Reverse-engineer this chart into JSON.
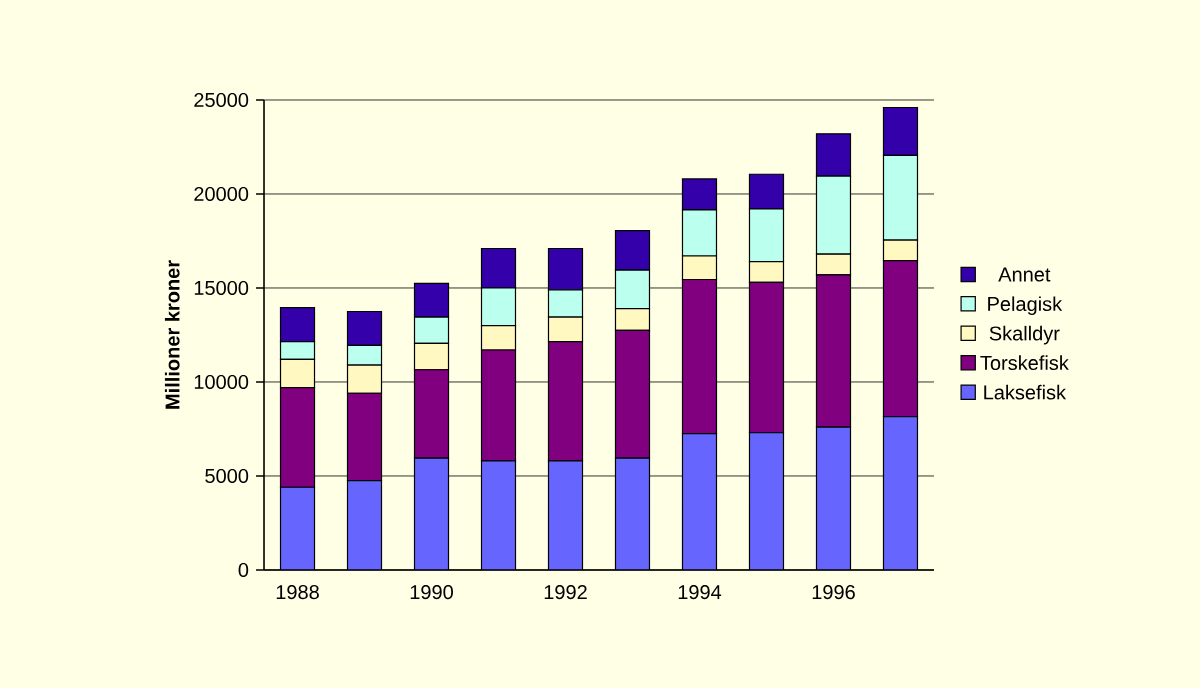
{
  "chart_data": {
    "type": "bar",
    "stacked": true,
    "ylabel": "Millioner kroner",
    "categories": [
      "1988",
      null,
      "1990",
      null,
      "1992",
      null,
      "1994",
      null,
      "1996",
      null
    ],
    "series": [
      {
        "name": "Laksefisk",
        "color": "#6666ff",
        "values": [
          4400,
          4750,
          5950,
          5800,
          5800,
          5950,
          7250,
          7300,
          7600,
          8150
        ]
      },
      {
        "name": "Torskefisk",
        "color": "#800080",
        "values": [
          5300,
          4650,
          4700,
          5900,
          6350,
          6800,
          8200,
          8000,
          8100,
          8300
        ]
      },
      {
        "name": "Skalldyr",
        "color": "#fff8c0",
        "values": [
          1500,
          1500,
          1400,
          1300,
          1300,
          1150,
          1250,
          1100,
          1100,
          1100
        ]
      },
      {
        "name": "Pelagisk",
        "color": "#bbffee",
        "values": [
          950,
          1050,
          1400,
          2000,
          1450,
          2050,
          2450,
          2800,
          4150,
          4500
        ]
      },
      {
        "name": "Annet",
        "color": "#3300aa",
        "values": [
          1800,
          1800,
          1800,
          2100,
          2200,
          2100,
          1650,
          1850,
          2250,
          2550
        ]
      }
    ],
    "ylim": [
      0,
      25000
    ],
    "yticks": [
      0,
      5000,
      10000,
      15000,
      20000,
      25000
    ],
    "grid": "y",
    "legend": "right"
  }
}
